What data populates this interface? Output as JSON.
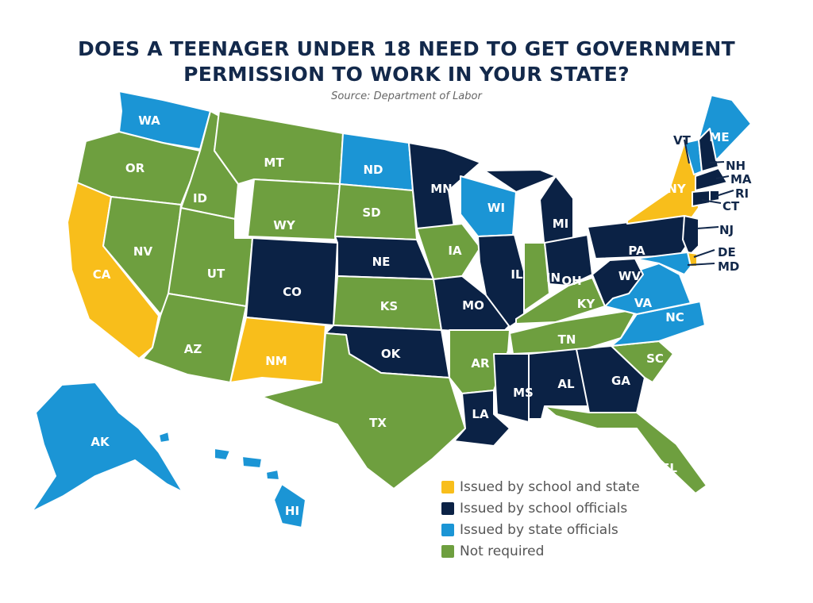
{
  "title": "DOES A TEENAGER UNDER 18 NEED TO GET GOVERNMENT PERMISSION TO WORK IN YOUR STATE?",
  "source": "Source: Department of Labor",
  "colors": {
    "school_and_state": "#f8be1b",
    "school": "#0b2245",
    "state": "#1b95d5",
    "not_required": "#6e9f3f"
  },
  "legend": [
    {
      "key": "school_and_state",
      "label": "Issued by school and state"
    },
    {
      "key": "school",
      "label": "Issued by school officials"
    },
    {
      "key": "state",
      "label": "Issued by state officials"
    },
    {
      "key": "not_required",
      "label": "Not required"
    }
  ],
  "states": [
    {
      "code": "WA",
      "cat": "state"
    },
    {
      "code": "OR",
      "cat": "not_required"
    },
    {
      "code": "CA",
      "cat": "school_and_state"
    },
    {
      "code": "NV",
      "cat": "not_required"
    },
    {
      "code": "ID",
      "cat": "not_required"
    },
    {
      "code": "MT",
      "cat": "not_required"
    },
    {
      "code": "WY",
      "cat": "not_required"
    },
    {
      "code": "UT",
      "cat": "not_required"
    },
    {
      "code": "AZ",
      "cat": "not_required"
    },
    {
      "code": "CO",
      "cat": "school"
    },
    {
      "code": "NM",
      "cat": "school_and_state"
    },
    {
      "code": "ND",
      "cat": "state"
    },
    {
      "code": "SD",
      "cat": "not_required"
    },
    {
      "code": "NE",
      "cat": "school"
    },
    {
      "code": "KS",
      "cat": "not_required"
    },
    {
      "code": "OK",
      "cat": "school"
    },
    {
      "code": "TX",
      "cat": "not_required"
    },
    {
      "code": "MN",
      "cat": "school"
    },
    {
      "code": "IA",
      "cat": "not_required"
    },
    {
      "code": "MO",
      "cat": "school"
    },
    {
      "code": "AR",
      "cat": "not_required"
    },
    {
      "code": "LA",
      "cat": "school"
    },
    {
      "code": "WI",
      "cat": "state"
    },
    {
      "code": "IL",
      "cat": "school"
    },
    {
      "code": "MI",
      "cat": "school"
    },
    {
      "code": "IN",
      "cat": "not_required"
    },
    {
      "code": "OH",
      "cat": "school"
    },
    {
      "code": "KY",
      "cat": "not_required"
    },
    {
      "code": "TN",
      "cat": "not_required"
    },
    {
      "code": "MS",
      "cat": "school"
    },
    {
      "code": "AL",
      "cat": "school"
    },
    {
      "code": "GA",
      "cat": "school"
    },
    {
      "code": "FL",
      "cat": "not_required"
    },
    {
      "code": "SC",
      "cat": "not_required"
    },
    {
      "code": "NC",
      "cat": "state"
    },
    {
      "code": "VA",
      "cat": "state"
    },
    {
      "code": "WV",
      "cat": "school"
    },
    {
      "code": "PA",
      "cat": "school"
    },
    {
      "code": "NY",
      "cat": "school_and_state"
    },
    {
      "code": "VT",
      "cat": "state"
    },
    {
      "code": "NH",
      "cat": "school"
    },
    {
      "code": "ME",
      "cat": "state"
    },
    {
      "code": "MA",
      "cat": "school"
    },
    {
      "code": "CT",
      "cat": "school"
    },
    {
      "code": "RI",
      "cat": "school"
    },
    {
      "code": "NJ",
      "cat": "school"
    },
    {
      "code": "DE",
      "cat": "school_and_state"
    },
    {
      "code": "MD",
      "cat": "state"
    },
    {
      "code": "AK",
      "cat": "state"
    },
    {
      "code": "HI",
      "cat": "state"
    }
  ]
}
